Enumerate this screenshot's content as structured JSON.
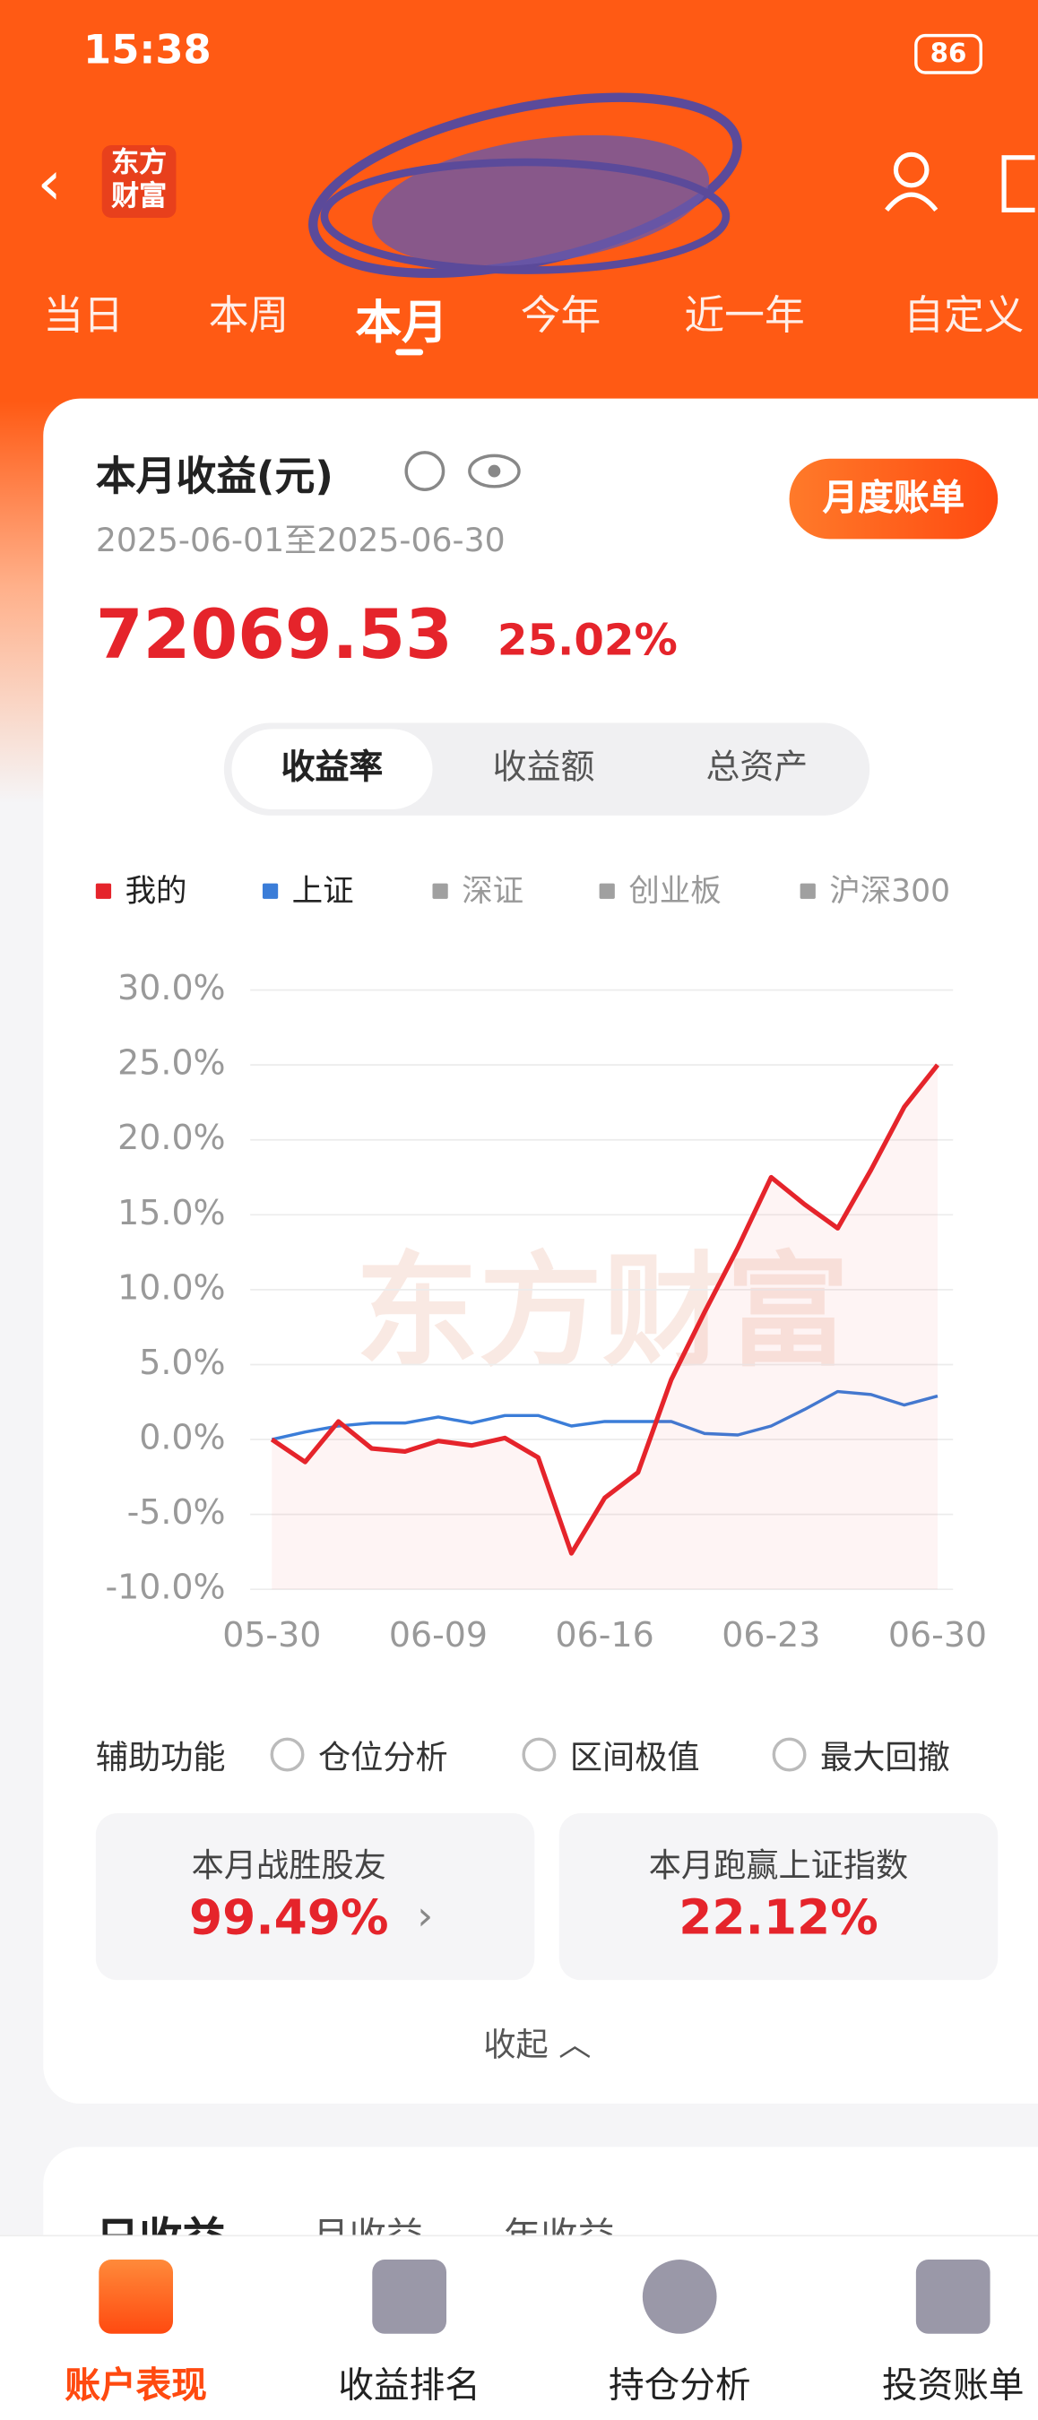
{
  "status_bar": {
    "time": "15:38",
    "battery": "86"
  },
  "header": {
    "logo": "东方财富"
  },
  "period_tabs": [
    "当日",
    "本周",
    "本月",
    "今年",
    "近一年",
    "自定义"
  ],
  "summary": {
    "title": "本月收益(元)",
    "date_range": "2025-06-01至2025-06-30",
    "bill_button": "月度账单",
    "amount": "72069.53",
    "rate": "25.02%"
  },
  "segments": [
    "收益率",
    "收益额",
    "总资产"
  ],
  "chart_data": {
    "type": "line",
    "watermark": "东方财富",
    "categories": [
      "05-30",
      null,
      null,
      null,
      null,
      "06-09",
      null,
      null,
      null,
      null,
      "06-16",
      null,
      null,
      null,
      null,
      "06-23",
      null,
      null,
      null,
      null,
      "06-30"
    ],
    "series": [
      {
        "name": "我的",
        "color": "#e5242b",
        "values": [
          0,
          -1.5,
          1.2,
          -0.6,
          -0.8,
          -0.1,
          -0.4,
          0.1,
          -1.2,
          -7.6,
          -3.9,
          -2.2,
          4.0,
          8.5,
          12.8,
          17.5,
          15.7,
          14.1,
          18.0,
          22.2,
          25.0
        ]
      },
      {
        "name": "上证",
        "color": "#3b7dd8",
        "values": [
          0,
          0.5,
          0.9,
          1.1,
          1.1,
          1.5,
          1.1,
          1.6,
          1.6,
          0.9,
          1.2,
          1.2,
          1.2,
          0.4,
          0.3,
          0.9,
          2.0,
          3.2,
          3.0,
          2.3,
          2.9
        ]
      }
    ],
    "hidden_series": [
      {
        "name": "深证",
        "color": "#a0a0a0"
      },
      {
        "name": "创业板",
        "color": "#a0a0a0"
      },
      {
        "name": "沪深300",
        "color": "#a0a0a0"
      }
    ],
    "ylim": [
      -10,
      30
    ],
    "yticks": [
      {
        "value": -10,
        "label": "-10.0%"
      },
      {
        "value": -5,
        "label": "-5.0%"
      },
      {
        "value": 0,
        "label": "0.0%"
      },
      {
        "value": 5,
        "label": "5.0%"
      },
      {
        "value": 10,
        "label": "10.0%"
      },
      {
        "value": 15,
        "label": "15.0%"
      },
      {
        "value": 20,
        "label": "20.0%"
      },
      {
        "value": 25,
        "label": "25.0%"
      },
      {
        "value": 30,
        "label": "30.0%"
      }
    ],
    "grid": true
  },
  "tools": {
    "label": "辅助功能",
    "options": [
      "仓位分析",
      "区间极值",
      "最大回撤"
    ]
  },
  "stats": [
    {
      "label": "本月战胜股友",
      "value": "99.49%"
    },
    {
      "label": "本月跑赢上证指数",
      "value": "22.12%"
    }
  ],
  "collapse": "收起",
  "next_card_tabs": [
    "日收益",
    "月收益",
    "年收益"
  ],
  "bottom_nav": [
    "账户表现",
    "收益排名",
    "持仓分析",
    "投资账单"
  ]
}
